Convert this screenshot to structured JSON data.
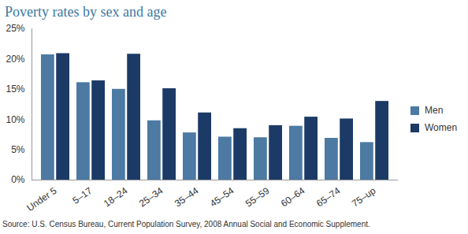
{
  "chart_data": {
    "type": "bar",
    "title": "Poverty rates by sex and age",
    "source": "Source: U.S. Census Bureau, Current Population Survey, 2008 Annual Social and Economic Supplement.",
    "categories": [
      "Under 5",
      "5–17",
      "18–24",
      "25–34",
      "35–44",
      "45–54",
      "55–59",
      "60–64",
      "65–74",
      "75–up"
    ],
    "series": [
      {
        "name": "Men",
        "color": "#4c7aa3",
        "values": [
          20.7,
          16.1,
          15.0,
          9.8,
          7.8,
          7.1,
          7.0,
          8.9,
          6.9,
          6.2
        ]
      },
      {
        "name": "Women",
        "color": "#1c3a66",
        "values": [
          20.9,
          16.4,
          20.8,
          15.1,
          11.1,
          8.5,
          9.0,
          10.4,
          10.1,
          13.0
        ]
      }
    ],
    "ylim": [
      0,
      25
    ],
    "yticks": [
      {
        "value": 0,
        "label": "0%"
      },
      {
        "value": 5,
        "label": "5%"
      },
      {
        "value": 10,
        "label": "10%"
      },
      {
        "value": 15,
        "label": "15%"
      },
      {
        "value": 20,
        "label": "20%"
      },
      {
        "value": 25,
        "label": "25%"
      }
    ],
    "grid": false,
    "legend": "right"
  }
}
